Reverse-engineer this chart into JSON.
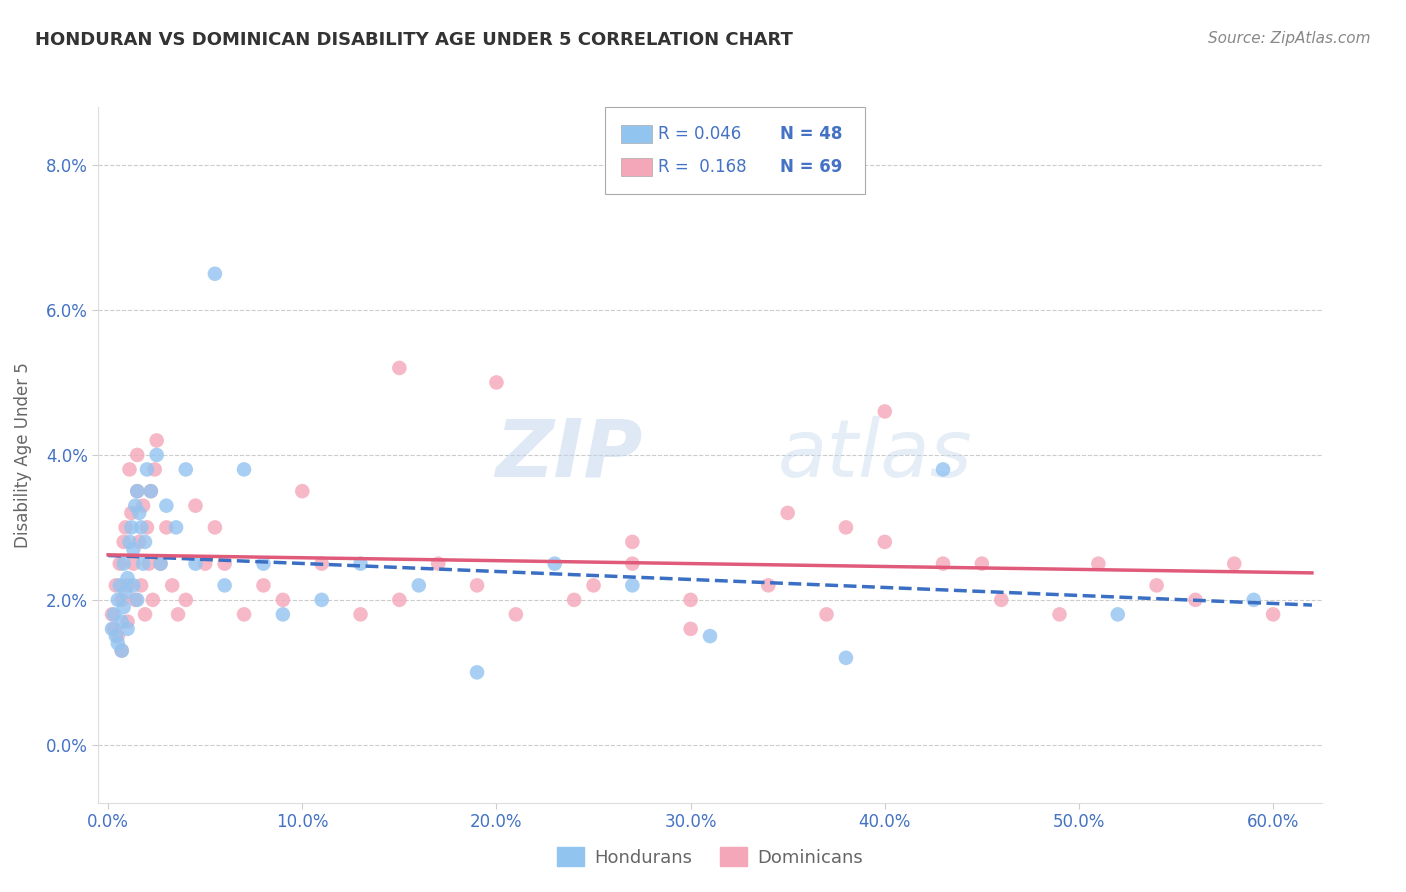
{
  "title": "HONDURAN VS DOMINICAN DISABILITY AGE UNDER 5 CORRELATION CHART",
  "source": "Source: ZipAtlas.com",
  "xlabel_ticks": [
    "0.0%",
    "10.0%",
    "20.0%",
    "30.0%",
    "40.0%",
    "50.0%",
    "60.0%"
  ],
  "xlabel_vals": [
    0.0,
    0.1,
    0.2,
    0.3,
    0.4,
    0.5,
    0.6
  ],
  "ylabel": "Disability Age Under 5",
  "ylabel_ticks": [
    "0.0%",
    "2.0%",
    "4.0%",
    "6.0%",
    "8.0%"
  ],
  "ylabel_vals": [
    0.0,
    0.02,
    0.04,
    0.06,
    0.08
  ],
  "xlim": [
    -0.005,
    0.625
  ],
  "ylim": [
    -0.008,
    0.088
  ],
  "honduran_color": "#92c4f0",
  "dominican_color": "#f4a7b9",
  "honduran_line_color": "#3a6fc4",
  "dominican_line_color": "#e05a7a",
  "legend_R_honduran": "R = 0.046",
  "legend_N_honduran": "N = 48",
  "legend_R_dominican": "R =  0.168",
  "legend_N_dominican": "N = 69",
  "honduran_x": [
    0.002,
    0.003,
    0.004,
    0.005,
    0.005,
    0.006,
    0.007,
    0.007,
    0.008,
    0.008,
    0.009,
    0.01,
    0.01,
    0.011,
    0.012,
    0.013,
    0.013,
    0.014,
    0.015,
    0.015,
    0.016,
    0.017,
    0.018,
    0.019,
    0.02,
    0.022,
    0.025,
    0.027,
    0.03,
    0.035,
    0.04,
    0.045,
    0.055,
    0.06,
    0.07,
    0.08,
    0.09,
    0.11,
    0.13,
    0.16,
    0.19,
    0.23,
    0.27,
    0.31,
    0.38,
    0.43,
    0.52,
    0.59
  ],
  "honduran_y": [
    0.016,
    0.018,
    0.015,
    0.02,
    0.014,
    0.022,
    0.017,
    0.013,
    0.025,
    0.019,
    0.021,
    0.023,
    0.016,
    0.028,
    0.03,
    0.027,
    0.022,
    0.033,
    0.035,
    0.02,
    0.032,
    0.03,
    0.025,
    0.028,
    0.038,
    0.035,
    0.04,
    0.025,
    0.033,
    0.03,
    0.038,
    0.025,
    0.065,
    0.022,
    0.038,
    0.025,
    0.018,
    0.02,
    0.025,
    0.022,
    0.01,
    0.025,
    0.022,
    0.015,
    0.012,
    0.038,
    0.018,
    0.02
  ],
  "dominican_x": [
    0.002,
    0.003,
    0.004,
    0.005,
    0.006,
    0.007,
    0.007,
    0.008,
    0.009,
    0.01,
    0.01,
    0.011,
    0.012,
    0.013,
    0.014,
    0.015,
    0.015,
    0.016,
    0.017,
    0.018,
    0.019,
    0.02,
    0.021,
    0.022,
    0.023,
    0.024,
    0.025,
    0.027,
    0.03,
    0.033,
    0.036,
    0.04,
    0.045,
    0.05,
    0.055,
    0.06,
    0.07,
    0.08,
    0.09,
    0.1,
    0.11,
    0.13,
    0.15,
    0.17,
    0.19,
    0.21,
    0.24,
    0.27,
    0.3,
    0.34,
    0.37,
    0.4,
    0.43,
    0.46,
    0.49,
    0.51,
    0.54,
    0.56,
    0.58,
    0.6,
    0.15,
    0.2,
    0.25,
    0.3,
    0.35,
    0.4,
    0.45,
    0.27,
    0.38
  ],
  "dominican_y": [
    0.018,
    0.016,
    0.022,
    0.015,
    0.025,
    0.02,
    0.013,
    0.028,
    0.03,
    0.022,
    0.017,
    0.038,
    0.032,
    0.025,
    0.02,
    0.035,
    0.04,
    0.028,
    0.022,
    0.033,
    0.018,
    0.03,
    0.025,
    0.035,
    0.02,
    0.038,
    0.042,
    0.025,
    0.03,
    0.022,
    0.018,
    0.02,
    0.033,
    0.025,
    0.03,
    0.025,
    0.018,
    0.022,
    0.02,
    0.035,
    0.025,
    0.018,
    0.02,
    0.025,
    0.022,
    0.018,
    0.02,
    0.025,
    0.02,
    0.022,
    0.018,
    0.028,
    0.025,
    0.02,
    0.018,
    0.025,
    0.022,
    0.02,
    0.025,
    0.018,
    0.052,
    0.05,
    0.022,
    0.016,
    0.032,
    0.046,
    0.025,
    0.028,
    0.03
  ],
  "watermark_zip": "ZIP",
  "watermark_atlas": "atlas",
  "bg_color": "#ffffff",
  "grid_color": "#cccccc",
  "title_color": "#333333",
  "axis_label_color": "#666666",
  "tick_color": "#4472c4"
}
